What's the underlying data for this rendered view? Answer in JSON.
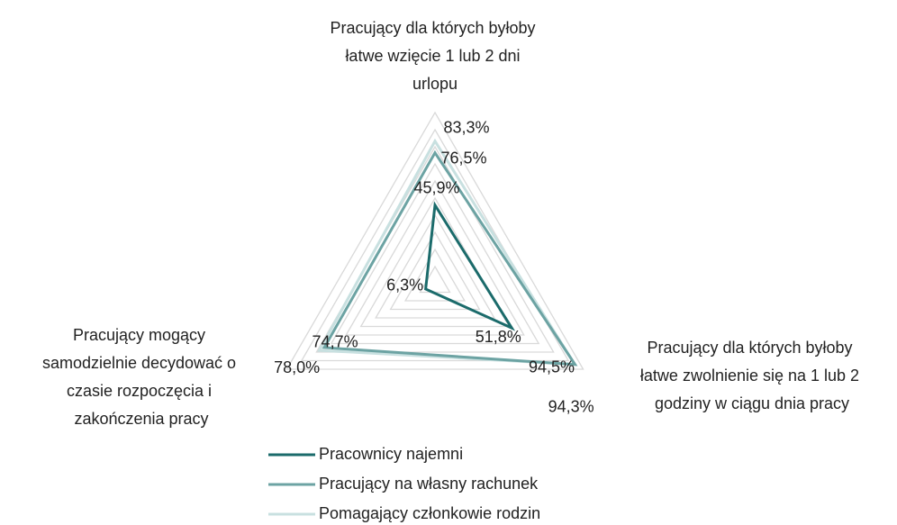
{
  "chart_data": {
    "type": "radar",
    "categories": [
      "Pracujący dla których byłoby łatwe wzięcie 1 lub 2 dni urlopu",
      "Pracujący dla których byłoby łatwe zwolnienie się na 1 lub 2 godziny w ciągu dnia pracy",
      "Pracujący mogący samodzielnie decydować o czasie rozpoczęcia i zakończenia pracy"
    ],
    "series": [
      {
        "name": "Pracownicy najemni",
        "color": "#1b6b6b",
        "values": [
          45.9,
          51.8,
          6.3
        ],
        "value_labels": [
          "45,9%",
          "51,8%",
          "6,3%"
        ]
      },
      {
        "name": "Pracujący na własny rachunek",
        "color": "#6ca3a3",
        "values": [
          76.5,
          94.5,
          74.7
        ],
        "value_labels": [
          "76,5%",
          "94,5%",
          "74,7%"
        ]
      },
      {
        "name": "Pomagający członkowie  rodzin",
        "color": "#c8e0e0",
        "values": [
          83.3,
          94.3,
          78.0
        ],
        "value_labels": [
          "83,3%",
          "94,3%",
          "78,0%"
        ]
      }
    ],
    "rlim": [
      0,
      100
    ],
    "rticks": [
      0,
      10,
      20,
      30,
      40,
      50,
      60,
      70,
      80,
      90,
      100
    ],
    "grid": true,
    "legend": "bottom"
  }
}
